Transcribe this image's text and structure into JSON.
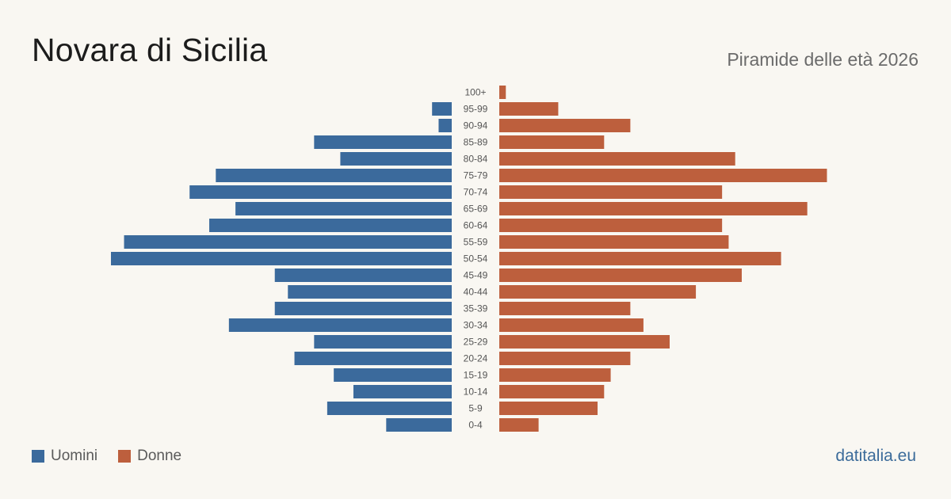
{
  "header": {
    "title": "Novara di Sicilia",
    "subtitle": "Piramide delle età 2026"
  },
  "legend": {
    "men_label": "Uomini",
    "women_label": "Donne"
  },
  "footer": {
    "brand": "datitalia.eu"
  },
  "colors": {
    "men": "#3b6a9c",
    "women": "#bd5f3d",
    "background": "#f9f7f2"
  },
  "chart_data": {
    "type": "bar",
    "orientation": "horizontal-pyramid",
    "categories": [
      "100+",
      "95-99",
      "90-94",
      "85-89",
      "80-84",
      "75-79",
      "70-74",
      "65-69",
      "60-64",
      "55-59",
      "50-54",
      "45-49",
      "40-44",
      "35-39",
      "30-34",
      "25-29",
      "20-24",
      "15-19",
      "10-14",
      "5-9",
      "0-4"
    ],
    "series": [
      {
        "name": "Uomini",
        "side": "left",
        "values": [
          0,
          3,
          2,
          21,
          17,
          36,
          40,
          33,
          37,
          50,
          52,
          27,
          25,
          27,
          34,
          21,
          24,
          18,
          15,
          19,
          10
        ]
      },
      {
        "name": "Donne",
        "side": "right",
        "values": [
          1,
          9,
          20,
          16,
          36,
          50,
          34,
          47,
          34,
          35,
          43,
          37,
          30,
          20,
          22,
          26,
          20,
          17,
          16,
          15,
          6
        ]
      }
    ],
    "xlim": [
      0,
      52
    ],
    "grid": false,
    "legend_position": "bottom-left"
  }
}
